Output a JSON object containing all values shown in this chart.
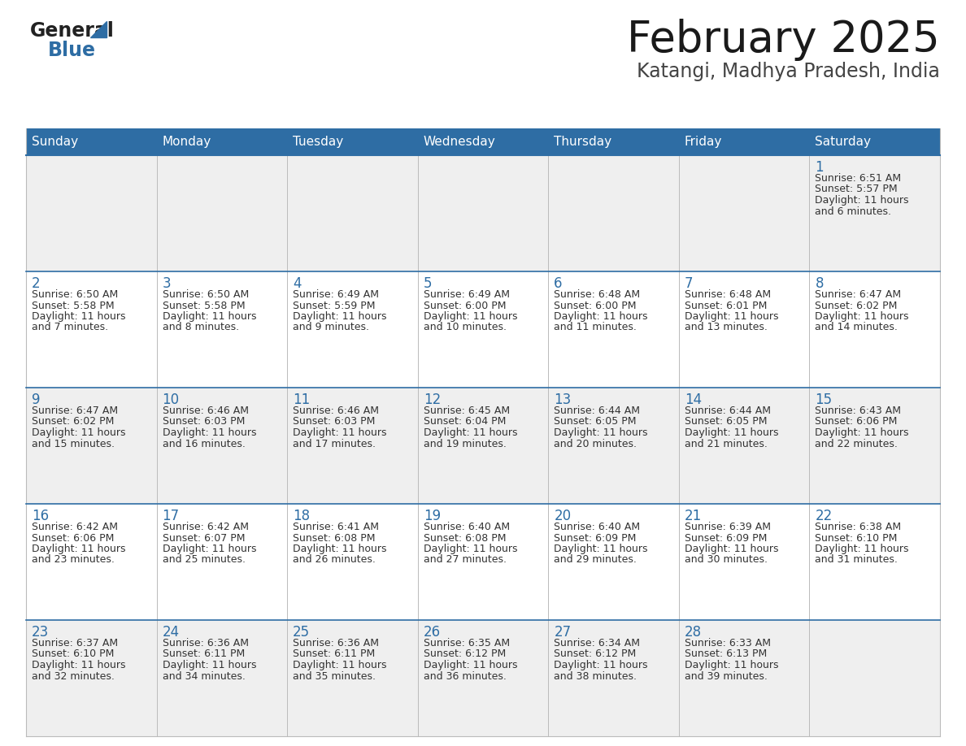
{
  "title": "February 2025",
  "subtitle": "Katangi, Madhya Pradesh, India",
  "header_bg": "#2E6DA4",
  "header_text": "#FFFFFF",
  "cell_bg_odd": "#EFEFEF",
  "cell_bg_even": "#FFFFFF",
  "day_headers": [
    "Sunday",
    "Monday",
    "Tuesday",
    "Wednesday",
    "Thursday",
    "Friday",
    "Saturday"
  ],
  "title_color": "#1a1a1a",
  "subtitle_color": "#444444",
  "day_num_color": "#2E6DA4",
  "cell_text_color": "#333333",
  "grid_line_color": "#2E6DA4",
  "border_color": "#CCCCCC",
  "calendar_data": [
    [
      null,
      null,
      null,
      null,
      null,
      null,
      {
        "day": "1",
        "sunrise": "6:51 AM",
        "sunset": "5:57 PM",
        "daylight": "11 hours",
        "daylight2": "and 6 minutes."
      }
    ],
    [
      {
        "day": "2",
        "sunrise": "6:50 AM",
        "sunset": "5:58 PM",
        "daylight": "11 hours",
        "daylight2": "and 7 minutes."
      },
      {
        "day": "3",
        "sunrise": "6:50 AM",
        "sunset": "5:58 PM",
        "daylight": "11 hours",
        "daylight2": "and 8 minutes."
      },
      {
        "day": "4",
        "sunrise": "6:49 AM",
        "sunset": "5:59 PM",
        "daylight": "11 hours",
        "daylight2": "and 9 minutes."
      },
      {
        "day": "5",
        "sunrise": "6:49 AM",
        "sunset": "6:00 PM",
        "daylight": "11 hours",
        "daylight2": "and 10 minutes."
      },
      {
        "day": "6",
        "sunrise": "6:48 AM",
        "sunset": "6:00 PM",
        "daylight": "11 hours",
        "daylight2": "and 11 minutes."
      },
      {
        "day": "7",
        "sunrise": "6:48 AM",
        "sunset": "6:01 PM",
        "daylight": "11 hours",
        "daylight2": "and 13 minutes."
      },
      {
        "day": "8",
        "sunrise": "6:47 AM",
        "sunset": "6:02 PM",
        "daylight": "11 hours",
        "daylight2": "and 14 minutes."
      }
    ],
    [
      {
        "day": "9",
        "sunrise": "6:47 AM",
        "sunset": "6:02 PM",
        "daylight": "11 hours",
        "daylight2": "and 15 minutes."
      },
      {
        "day": "10",
        "sunrise": "6:46 AM",
        "sunset": "6:03 PM",
        "daylight": "11 hours",
        "daylight2": "and 16 minutes."
      },
      {
        "day": "11",
        "sunrise": "6:46 AM",
        "sunset": "6:03 PM",
        "daylight": "11 hours",
        "daylight2": "and 17 minutes."
      },
      {
        "day": "12",
        "sunrise": "6:45 AM",
        "sunset": "6:04 PM",
        "daylight": "11 hours",
        "daylight2": "and 19 minutes."
      },
      {
        "day": "13",
        "sunrise": "6:44 AM",
        "sunset": "6:05 PM",
        "daylight": "11 hours",
        "daylight2": "and 20 minutes."
      },
      {
        "day": "14",
        "sunrise": "6:44 AM",
        "sunset": "6:05 PM",
        "daylight": "11 hours",
        "daylight2": "and 21 minutes."
      },
      {
        "day": "15",
        "sunrise": "6:43 AM",
        "sunset": "6:06 PM",
        "daylight": "11 hours",
        "daylight2": "and 22 minutes."
      }
    ],
    [
      {
        "day": "16",
        "sunrise": "6:42 AM",
        "sunset": "6:06 PM",
        "daylight": "11 hours",
        "daylight2": "and 23 minutes."
      },
      {
        "day": "17",
        "sunrise": "6:42 AM",
        "sunset": "6:07 PM",
        "daylight": "11 hours",
        "daylight2": "and 25 minutes."
      },
      {
        "day": "18",
        "sunrise": "6:41 AM",
        "sunset": "6:08 PM",
        "daylight": "11 hours",
        "daylight2": "and 26 minutes."
      },
      {
        "day": "19",
        "sunrise": "6:40 AM",
        "sunset": "6:08 PM",
        "daylight": "11 hours",
        "daylight2": "and 27 minutes."
      },
      {
        "day": "20",
        "sunrise": "6:40 AM",
        "sunset": "6:09 PM",
        "daylight": "11 hours",
        "daylight2": "and 29 minutes."
      },
      {
        "day": "21",
        "sunrise": "6:39 AM",
        "sunset": "6:09 PM",
        "daylight": "11 hours",
        "daylight2": "and 30 minutes."
      },
      {
        "day": "22",
        "sunrise": "6:38 AM",
        "sunset": "6:10 PM",
        "daylight": "11 hours",
        "daylight2": "and 31 minutes."
      }
    ],
    [
      {
        "day": "23",
        "sunrise": "6:37 AM",
        "sunset": "6:10 PM",
        "daylight": "11 hours",
        "daylight2": "and 32 minutes."
      },
      {
        "day": "24",
        "sunrise": "6:36 AM",
        "sunset": "6:11 PM",
        "daylight": "11 hours",
        "daylight2": "and 34 minutes."
      },
      {
        "day": "25",
        "sunrise": "6:36 AM",
        "sunset": "6:11 PM",
        "daylight": "11 hours",
        "daylight2": "and 35 minutes."
      },
      {
        "day": "26",
        "sunrise": "6:35 AM",
        "sunset": "6:12 PM",
        "daylight": "11 hours",
        "daylight2": "and 36 minutes."
      },
      {
        "day": "27",
        "sunrise": "6:34 AM",
        "sunset": "6:12 PM",
        "daylight": "11 hours",
        "daylight2": "and 38 minutes."
      },
      {
        "day": "28",
        "sunrise": "6:33 AM",
        "sunset": "6:13 PM",
        "daylight": "11 hours",
        "daylight2": "and 39 minutes."
      },
      null
    ]
  ],
  "logo_text_general": "General",
  "logo_text_blue": "Blue",
  "logo_color_general": "#222222",
  "logo_color_blue": "#2E6DA4",
  "logo_triangle_color": "#2E6DA4",
  "fig_width": 11.88,
  "fig_height": 9.18,
  "dpi": 100
}
